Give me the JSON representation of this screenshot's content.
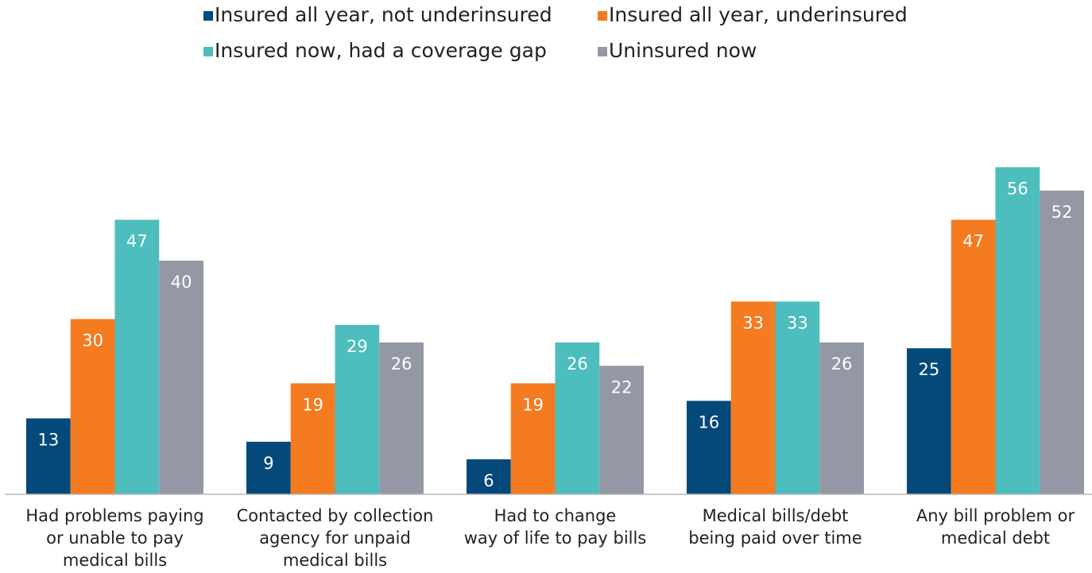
{
  "chart_data": {
    "type": "bar",
    "categories": [
      [
        "Had problems paying",
        "or unable to pay",
        "medical bills"
      ],
      [
        "Contacted by collection",
        "agency for unpaid",
        "medical bills"
      ],
      [
        "Had to change",
        "way of life to pay bills"
      ],
      [
        "Medical bills/debt",
        "being paid over time"
      ],
      [
        "Any bill problem or",
        "medical debt"
      ]
    ],
    "series": [
      {
        "name": "Insured all year, not underinsured",
        "color": "#05497b",
        "values": [
          13,
          9,
          6,
          16,
          25
        ]
      },
      {
        "name": "Insured all year, underinsured",
        "color": "#f47b20",
        "values": [
          30,
          19,
          19,
          33,
          47
        ]
      },
      {
        "name": "Insured now, had a coverage gap",
        "color": "#4dbdbd",
        "values": [
          47,
          29,
          26,
          33,
          56
        ]
      },
      {
        "name": "Uninsured now",
        "color": "#9398a4",
        "values": [
          40,
          26,
          22,
          26,
          52
        ]
      }
    ],
    "ylim": [
      0,
      57
    ],
    "legend": "top"
  }
}
